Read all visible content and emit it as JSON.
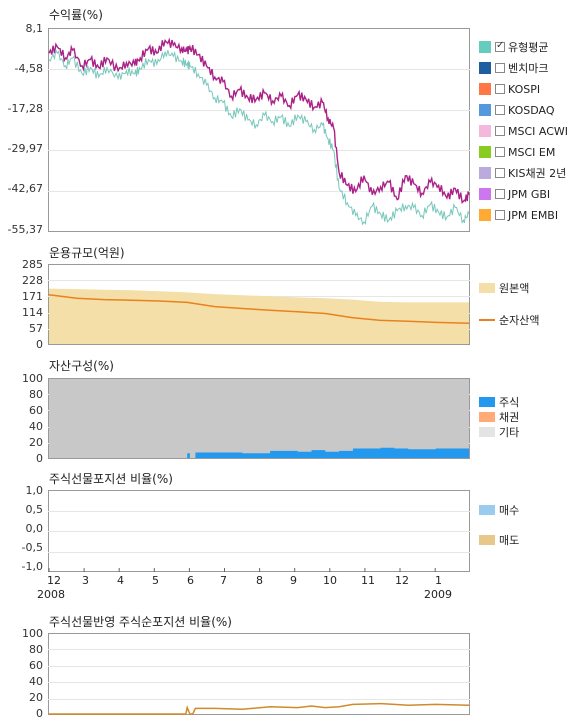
{
  "chart_data": [
    {
      "type": "line",
      "title": "수익률(%)",
      "yticks": [
        "8,1",
        "-4,58",
        "-17,28",
        "-29,97",
        "-42,67",
        "-55,37"
      ],
      "ylim": [
        -55.37,
        8.1
      ],
      "legend": [
        {
          "label": "유형평균",
          "color": "#66ccbb",
          "checked": true
        },
        {
          "label": "벤치마크",
          "color": "#1f5fa0",
          "checked": false
        },
        {
          "label": "KOSPI",
          "color": "#ff7744",
          "checked": false
        },
        {
          "label": "KOSDAQ",
          "color": "#5599dd",
          "checked": false
        },
        {
          "label": "MSCI ACWI",
          "color": "#f4b8dd",
          "checked": false
        },
        {
          "label": "MSCI EM",
          "color": "#88cc22",
          "checked": false
        },
        {
          "label": "KIS채권 2년",
          "color": "#bbaadd",
          "checked": false
        },
        {
          "label": "JPM GBI",
          "color": "#cc77ee",
          "checked": false
        },
        {
          "label": "JPM EMBI",
          "color": "#ffaa33",
          "checked": false
        }
      ],
      "x": [
        0,
        0.3,
        0.6,
        0.85,
        1.2,
        1.5,
        1.8,
        2.1,
        2.5,
        2.8,
        3.1,
        3.3,
        3.6,
        3.9,
        4.2,
        4.5,
        4.8,
        5.0,
        5.1,
        5.4,
        5.7,
        6.0,
        6.3,
        6.6,
        6.9,
        7.2,
        7.5,
        7.8,
        8.1,
        8.4,
        8.7,
        9.0,
        9.3,
        9.6,
        9.9,
        10.1,
        10.3,
        10.5,
        10.8,
        11.1,
        11.4,
        11.7,
        12.0,
        12.3,
        12.6,
        12.9,
        13.2,
        13.5,
        13.8,
        14.1,
        14.4,
        14.7,
        15.0,
        15.2
      ],
      "series": [
        {
          "color": "#aa2288",
          "values": [
            0.5,
            2.5,
            -1.0,
            1.5,
            -3.5,
            -1.5,
            -4.0,
            -1.0,
            -5.0,
            -2.5,
            -3.0,
            -1.0,
            2.0,
            0.5,
            4.5,
            3.0,
            2.0,
            1.0,
            2.5,
            0.0,
            -3.5,
            -7.0,
            -8.5,
            -13.0,
            -11.0,
            -13.5,
            -14.0,
            -12.0,
            -14.5,
            -13.0,
            -16.0,
            -12.5,
            -14.0,
            -16.5,
            -15.0,
            -20.0,
            -23.0,
            -37.0,
            -41.0,
            -43.0,
            -38.0,
            -44.0,
            -41.5,
            -40.0,
            -45.5,
            -38.0,
            -40.5,
            -43.5,
            -40.0,
            -41.0,
            -45.0,
            -42.0,
            -46.0,
            -44.0
          ]
        },
        {
          "color": "#77c7bb",
          "values": [
            -1.5,
            0.5,
            -3.5,
            -1.0,
            -6.0,
            -4.0,
            -7.0,
            -4.0,
            -7.5,
            -5.0,
            -6.0,
            -4.5,
            -1.5,
            -3.0,
            1.0,
            -0.5,
            -2.0,
            -3.0,
            -3.5,
            -6.0,
            -9.5,
            -13.5,
            -15.0,
            -19.5,
            -17.0,
            -20.5,
            -22.0,
            -19.0,
            -21.0,
            -19.5,
            -22.5,
            -19.0,
            -21.0,
            -23.5,
            -22.0,
            -26.5,
            -30.0,
            -42.0,
            -46.5,
            -50.5,
            -52.5,
            -47.5,
            -50.0,
            -52.0,
            -49.0,
            -47.5,
            -48.0,
            -50.5,
            -47.0,
            -49.5,
            -51.0,
            -48.0,
            -52.0,
            -50.0
          ]
        }
      ]
    },
    {
      "type": "area",
      "title": "운용규모(억원)",
      "yticks": [
        "285",
        "228",
        "171",
        "114",
        "57",
        "0"
      ],
      "ylim": [
        0,
        285
      ],
      "legend": [
        {
          "label": "원본액",
          "color": "#f5dfa8"
        },
        {
          "label": "순자산액",
          "color": "#e8821e"
        }
      ],
      "x": [
        0,
        1,
        2,
        3,
        4,
        5,
        6,
        7,
        8,
        9,
        10,
        11,
        12,
        13,
        14,
        15.2
      ],
      "series": [
        {
          "name": "원본액",
          "values": [
            200,
            198,
            196,
            194,
            190,
            186,
            180,
            176,
            172,
            168,
            165,
            160,
            152,
            150,
            150,
            150
          ]
        },
        {
          "name": "순자산액",
          "values": [
            178,
            165,
            160,
            158,
            155,
            150,
            135,
            128,
            122,
            116,
            110,
            95,
            85,
            82,
            78,
            75
          ]
        }
      ]
    },
    {
      "type": "area",
      "title": "자산구성(%)",
      "yticks": [
        "100",
        "80",
        "60",
        "40",
        "20",
        "0"
      ],
      "ylim": [
        0,
        100
      ],
      "legend": [
        {
          "label": "주식",
          "color": "#2299ee"
        },
        {
          "label": "채권",
          "color": "#ffaa77"
        },
        {
          "label": "기타",
          "color": "#e4e4e4"
        }
      ],
      "x": [
        0,
        1,
        2,
        3,
        4,
        4.95,
        5.0,
        5.1,
        5.2,
        5.3,
        6.0,
        7.0,
        8.0,
        9.0,
        9.5,
        10.0,
        10.5,
        11.0,
        12.0,
        12.5,
        13.0,
        14.0,
        15.2
      ],
      "series": [
        {
          "name": "주식",
          "values": [
            0,
            0,
            0,
            0,
            0,
            0,
            6,
            0,
            0,
            7,
            7,
            6,
            9,
            8,
            10,
            8,
            9,
            12,
            13,
            12,
            11,
            12,
            11
          ]
        },
        {
          "name": "기타",
          "values": [
            100,
            100,
            100,
            100,
            100,
            100,
            100,
            100,
            100,
            100,
            100,
            100,
            100,
            100,
            100,
            100,
            100,
            100,
            100,
            100,
            100,
            100,
            100
          ]
        }
      ]
    },
    {
      "type": "line",
      "title": "주식선물포지션 비율(%)",
      "yticks": [
        "1,0",
        "0,5",
        "0,0",
        "-0,5",
        "-1,0"
      ],
      "ylim": [
        -1,
        1
      ],
      "legend": [
        {
          "label": "매수",
          "color": "#99ccee"
        },
        {
          "label": "매도",
          "color": "#e8c88a"
        }
      ],
      "xticks": [
        "12",
        "3",
        "4",
        "5",
        "6",
        "7",
        "8",
        "9",
        "10",
        "11",
        "12",
        "1"
      ],
      "xtick_pos": [
        0,
        1,
        2,
        3,
        4,
        5,
        6,
        7,
        8,
        9,
        10,
        11
      ],
      "year_labels": [
        {
          "label": "2008",
          "at": 0
        },
        {
          "label": "2009",
          "at": 11
        }
      ]
    },
    {
      "type": "line",
      "title": "주식선물반영 주식순포지션 비율(%)",
      "yticks": [
        "100",
        "80",
        "60",
        "40",
        "20",
        "0"
      ],
      "ylim": [
        0,
        100
      ],
      "x": [
        0,
        1,
        2,
        3,
        4,
        4.95,
        5.0,
        5.1,
        5.2,
        5.3,
        6.0,
        7.0,
        8.0,
        9.0,
        9.5,
        10.0,
        10.5,
        11.0,
        12.0,
        12.5,
        13.0,
        14.0,
        15.2
      ],
      "series": [
        {
          "color": "#d08a2a",
          "values": [
            0,
            0,
            0,
            0,
            0,
            0,
            8,
            0,
            0,
            7,
            7,
            6,
            9,
            8,
            10,
            8,
            9,
            12,
            13,
            12,
            11,
            12,
            11
          ]
        }
      ]
    }
  ]
}
